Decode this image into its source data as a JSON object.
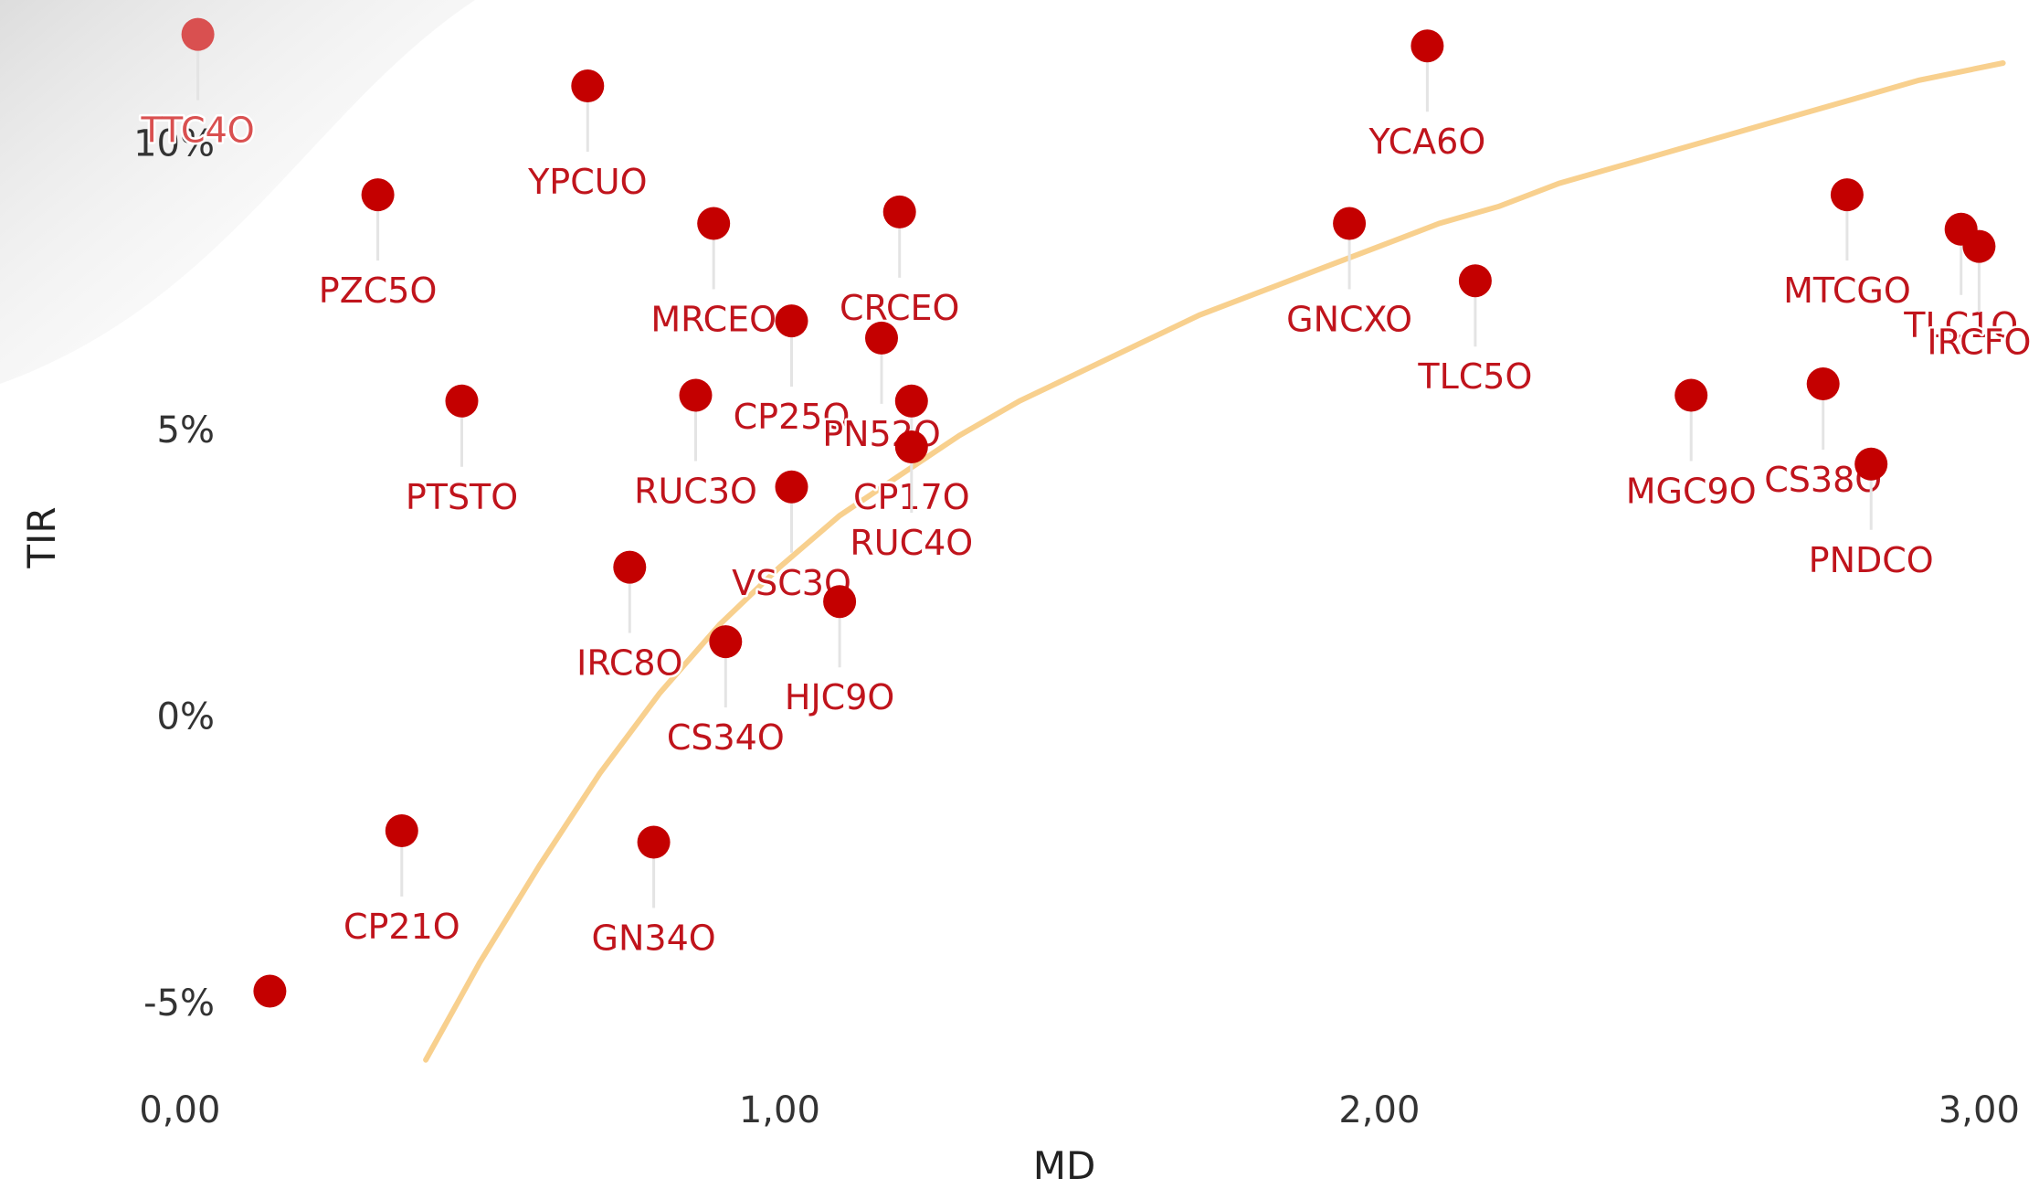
{
  "colors": {
    "point": "#c40000",
    "point_faded": "#d95050",
    "label": "#c0141c",
    "curve": "#f8d08e",
    "axis_text": "#333333"
  },
  "chart_data": {
    "type": "scatter",
    "xlabel": "MD",
    "ylabel": "TIR",
    "xlim": [
      -0.3,
      3.1
    ],
    "ylim": [
      -6.1,
      12.5
    ],
    "x_ticks": [
      0,
      1,
      2,
      3
    ],
    "x_tick_labels": [
      "0,00",
      "1,00",
      "2,00",
      "3,00"
    ],
    "y_ticks": [
      10,
      5,
      0,
      -5
    ],
    "y_tick_labels": [
      "10%",
      "5%",
      "0%",
      "-5%"
    ],
    "grid": false,
    "legend": "none",
    "points": [
      {
        "label": "TTC4O",
        "x": 0.03,
        "y": 11.9,
        "faded": true
      },
      {
        "label": "YPCUO",
        "x": 0.68,
        "y": 11.0
      },
      {
        "label": "PZC5O",
        "x": 0.33,
        "y": 9.1
      },
      {
        "label": "MRCEO",
        "x": 0.89,
        "y": 8.6
      },
      {
        "label": "CRCEO",
        "x": 1.2,
        "y": 8.8
      },
      {
        "label": "CP25O",
        "x": 1.02,
        "y": 6.9
      },
      {
        "label": "PTSTO",
        "x": 0.47,
        "y": 5.5
      },
      {
        "label": "RUC3O",
        "x": 0.86,
        "y": 5.6
      },
      {
        "label": "PN52O",
        "x": 1.17,
        "y": 6.6
      },
      {
        "label": "CP17O",
        "x": 1.22,
        "y": 5.5
      },
      {
        "label": "RUC4O",
        "x": 1.22,
        "y": 4.7
      },
      {
        "label": "VSC3O",
        "x": 1.02,
        "y": 4.0
      },
      {
        "label": "IRC8O",
        "x": 0.75,
        "y": 2.6
      },
      {
        "label": "HJC9O",
        "x": 1.1,
        "y": 2.0
      },
      {
        "label": "CS34O",
        "x": 0.91,
        "y": 1.3
      },
      {
        "label": "CP21O",
        "x": 0.37,
        "y": -2.0
      },
      {
        "label": "GN34O",
        "x": 0.79,
        "y": -2.2
      },
      {
        "label": "",
        "x": 0.15,
        "y": -4.8
      },
      {
        "label": "YCA6O",
        "x": 2.08,
        "y": 11.7
      },
      {
        "label": "GNCXO",
        "x": 1.95,
        "y": 8.6
      },
      {
        "label": "TLC5O",
        "x": 2.16,
        "y": 7.6
      },
      {
        "label": "MTCGO",
        "x": 2.78,
        "y": 9.1
      },
      {
        "label": "TLC1O",
        "x": 2.97,
        "y": 8.5
      },
      {
        "label": "IRCFO",
        "x": 3.0,
        "y": 8.2
      },
      {
        "label": "MGC9O",
        "x": 2.52,
        "y": 5.6
      },
      {
        "label": "CS38O",
        "x": 2.74,
        "y": 5.8
      },
      {
        "label": "PNDCO",
        "x": 2.82,
        "y": 4.4
      }
    ],
    "curve": {
      "name": "",
      "points": [
        [
          0.41,
          -6.0
        ],
        [
          0.5,
          -4.3
        ],
        [
          0.6,
          -2.6
        ],
        [
          0.7,
          -1.0
        ],
        [
          0.8,
          0.4
        ],
        [
          0.9,
          1.6
        ],
        [
          1.0,
          2.6
        ],
        [
          1.1,
          3.5
        ],
        [
          1.2,
          4.2
        ],
        [
          1.3,
          4.9
        ],
        [
          1.4,
          5.5
        ],
        [
          1.5,
          6.0
        ],
        [
          1.6,
          6.5
        ],
        [
          1.7,
          7.0
        ],
        [
          1.8,
          7.4
        ],
        [
          1.9,
          7.8
        ],
        [
          2.0,
          8.2
        ],
        [
          2.1,
          8.6
        ],
        [
          2.2,
          8.9
        ],
        [
          2.3,
          9.3
        ],
        [
          2.4,
          9.6
        ],
        [
          2.5,
          9.9
        ],
        [
          2.6,
          10.2
        ],
        [
          2.7,
          10.5
        ],
        [
          2.8,
          10.8
        ],
        [
          2.9,
          11.1
        ],
        [
          3.04,
          11.4
        ]
      ]
    }
  }
}
